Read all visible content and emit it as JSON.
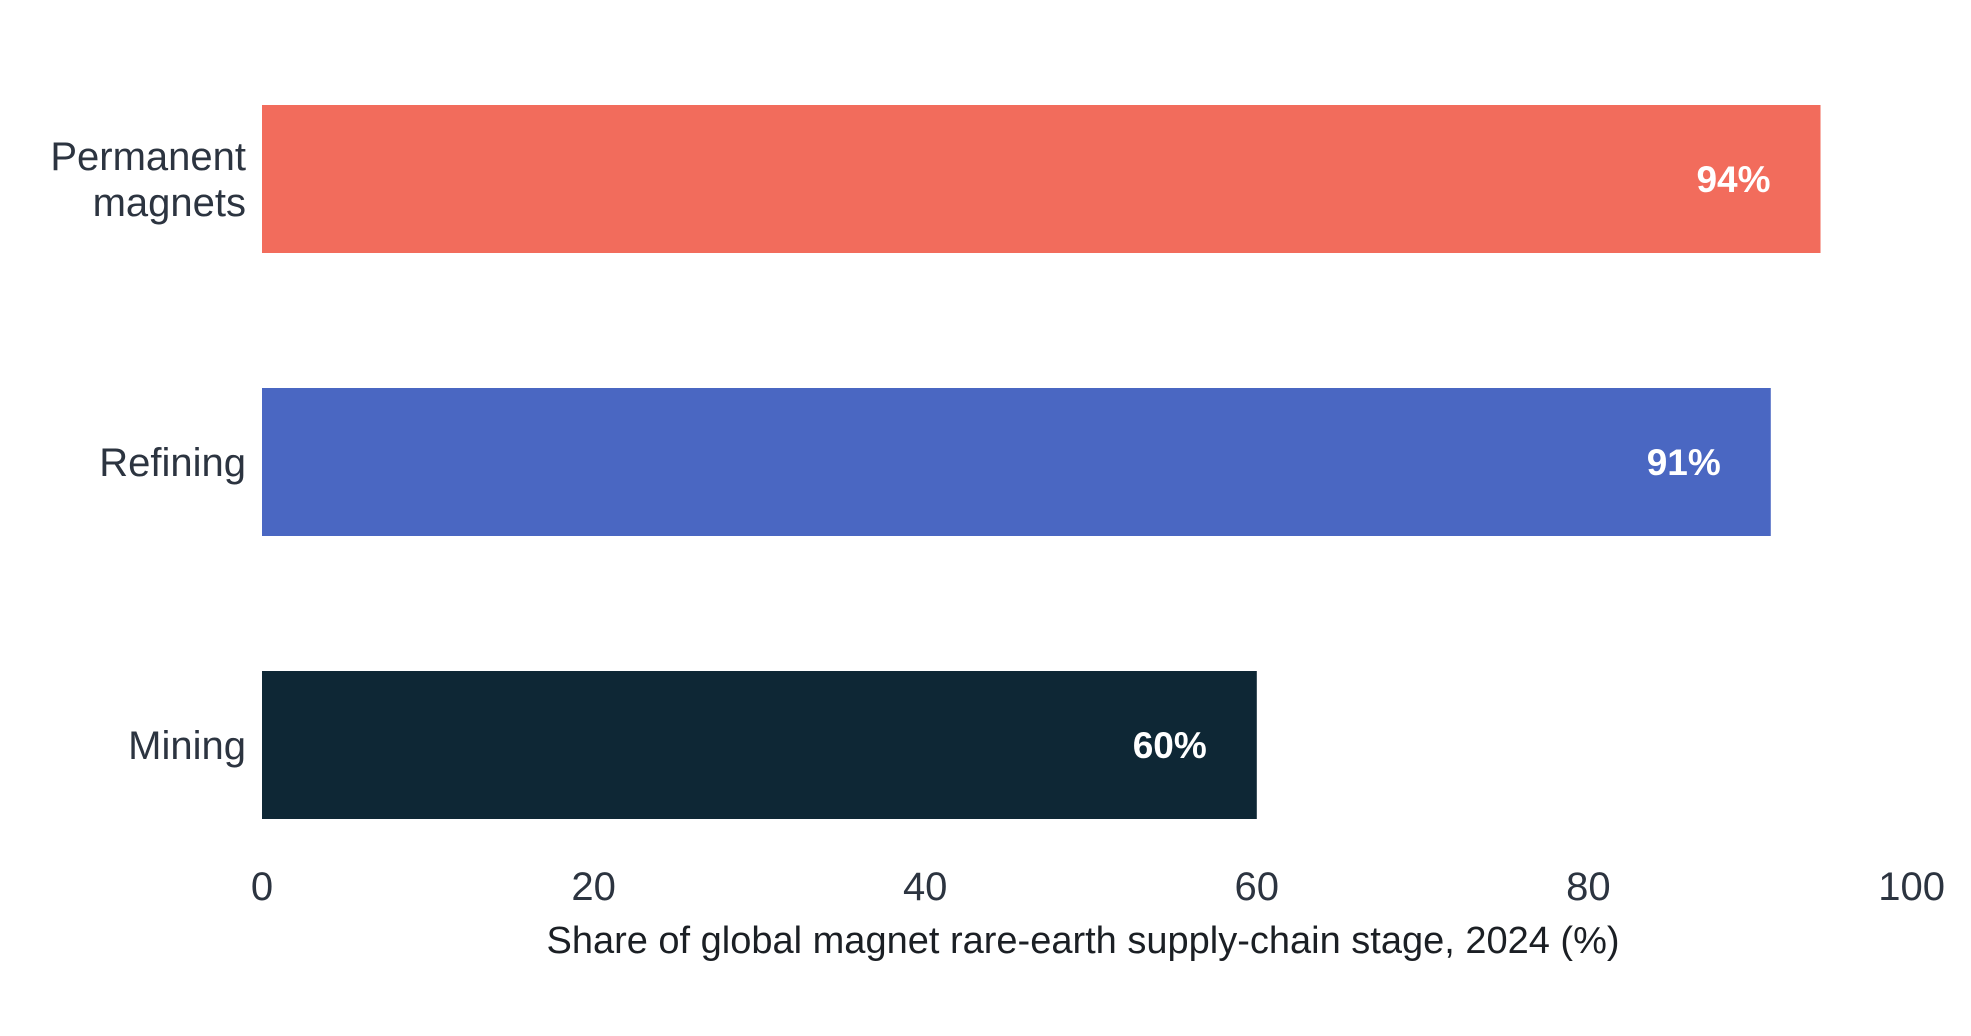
{
  "chart_data": {
    "type": "bar",
    "orientation": "horizontal",
    "categories": [
      [
        "Permanent",
        "magnets"
      ],
      [
        "Refining"
      ],
      [
        "Mining"
      ]
    ],
    "values": [
      94,
      91,
      60
    ],
    "value_labels": [
      "94%",
      "91%",
      "60%"
    ],
    "colors": [
      "#f26c5c",
      "#4a67c2",
      "#0e2735"
    ],
    "xlabel": "Share of global magnet rare-earth supply-chain stage, 2024 (%)",
    "ylabel": "",
    "title": "",
    "xlim": [
      0,
      100
    ],
    "xticks": [
      0,
      20,
      40,
      60,
      80,
      100
    ],
    "xtick_labels": [
      "0",
      "20",
      "40",
      "60",
      "80",
      "100"
    ],
    "grid": false,
    "legend": "none"
  }
}
